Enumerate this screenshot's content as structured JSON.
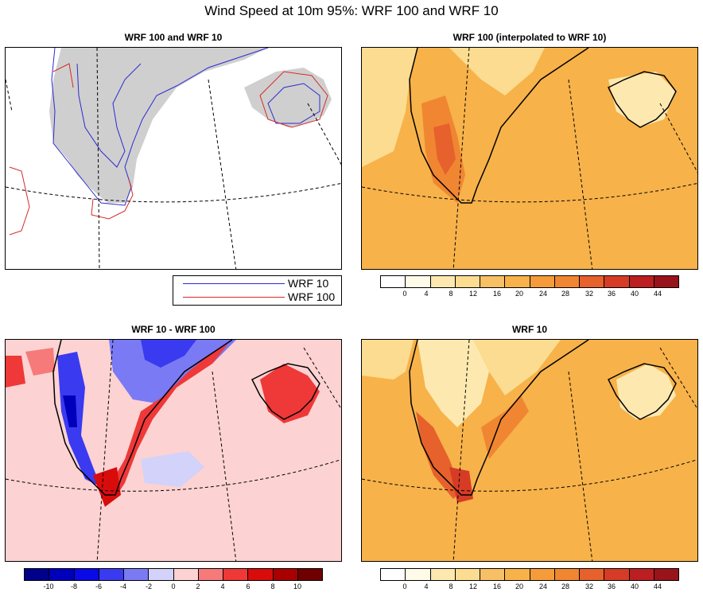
{
  "title": "Wind Speed at 10m 95%: WRF 100 and WRF 10",
  "panels": {
    "top_left": {
      "title": "WRF 100 and WRF 10"
    },
    "top_right": {
      "title": "WRF 100 (interpolated to WRF 10)"
    },
    "bottom_left": {
      "title": "WRF 10 - WRF 100"
    },
    "bottom_right": {
      "title": "WRF 10"
    }
  },
  "line_legend": {
    "items": [
      {
        "label": "WRF 10",
        "color": "#2b2bd0"
      },
      {
        "label": "WRF 100",
        "color": "#d62a2a"
      }
    ]
  },
  "speed_colorbar": {
    "labels": [
      "0",
      "4",
      "8",
      "12",
      "16",
      "20",
      "24",
      "28",
      "32",
      "36",
      "40",
      "44"
    ],
    "colors": [
      "#ffffff",
      "#fffbe9",
      "#fde9b0",
      "#fbdc91",
      "#f8c064",
      "#f7b24a",
      "#f59b39",
      "#f08632",
      "#e6612b",
      "#d63b26",
      "#bb1f22",
      "#98141a"
    ]
  },
  "diff_colorbar": {
    "labels": [
      "-10",
      "-8",
      "-6",
      "-4",
      "-2",
      "0",
      "2",
      "4",
      "6",
      "8",
      "10"
    ],
    "colors": [
      "#00008a",
      "#0000bb",
      "#0a0ae6",
      "#3a3af0",
      "#7a7af5",
      "#d2d2fb",
      "#fcd2d2",
      "#f67a7a",
      "#ef3838",
      "#d90c0c",
      "#a80000",
      "#6e0000"
    ]
  }
}
